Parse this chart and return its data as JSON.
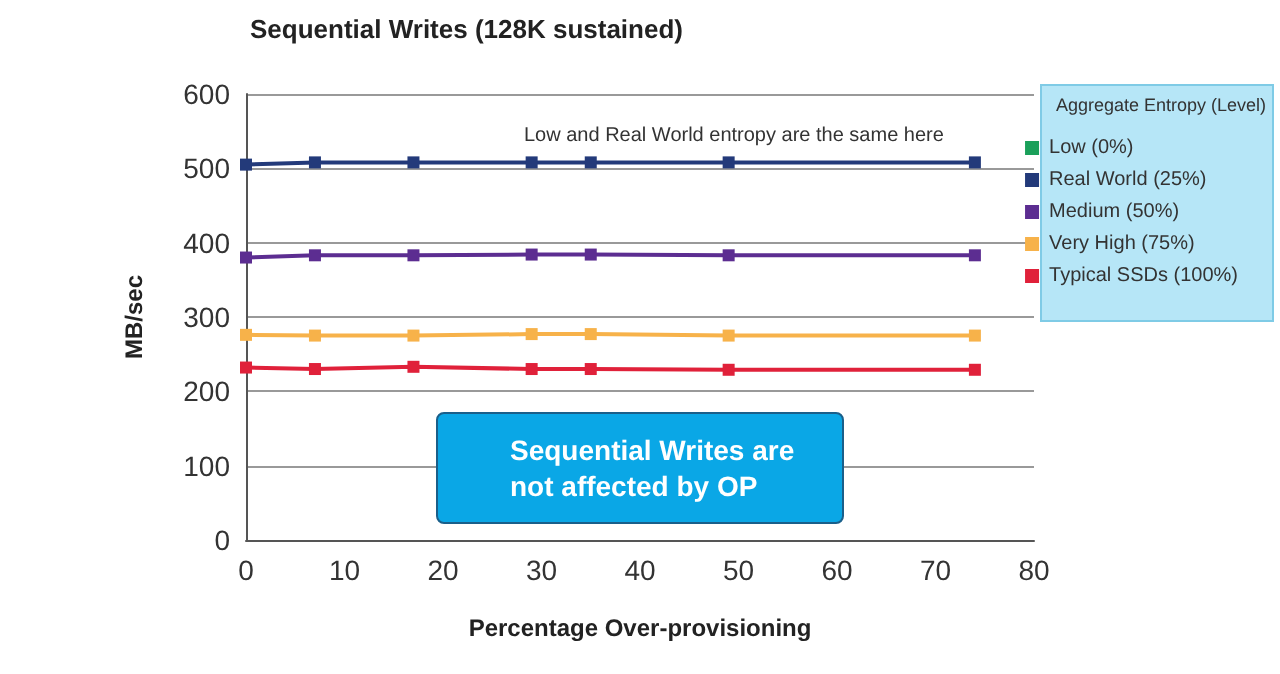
{
  "chart_data": {
    "type": "line",
    "title": "Sequential Writes (128K sustained)",
    "xlabel": "Percentage Over-provisioning",
    "ylabel": "MB/sec",
    "legend_title": "Aggregate Entropy (Level)",
    "annotations": [
      "Low and Real World entropy are the same here",
      "Sequential Writes are not affected by OP"
    ],
    "x": [
      0,
      7,
      17,
      29,
      35,
      49,
      74
    ],
    "series": [
      {
        "name": "Low (0%)",
        "color": "#1aa05a",
        "values": [
          null,
          null,
          null,
          null,
          null,
          null,
          null
        ]
      },
      {
        "name": "Real World (25%)",
        "color": "#233a7a",
        "values": [
          505,
          508,
          508,
          508,
          508,
          508,
          508
        ]
      },
      {
        "name": "Medium (50%)",
        "color": "#5c2d91",
        "values": [
          380,
          383,
          383,
          384,
          384,
          383,
          383
        ]
      },
      {
        "name": "Very High (75%)",
        "color": "#f7b24a",
        "values": [
          276,
          275,
          275,
          277,
          277,
          275,
          275
        ]
      },
      {
        "name": "Typical SSDs (100%)",
        "color": "#e0213a",
        "values": [
          232,
          230,
          233,
          230,
          230,
          229,
          229
        ]
      }
    ],
    "xlim": [
      0,
      80
    ],
    "xticks": [
      0,
      10,
      20,
      30,
      40,
      50,
      60,
      70,
      80
    ],
    "ylim": [
      0,
      600
    ],
    "yticks": [
      0,
      100,
      200,
      300,
      400,
      500,
      600
    ],
    "grid": "y",
    "legend": "right",
    "marker": "square",
    "line_style": "solid"
  }
}
